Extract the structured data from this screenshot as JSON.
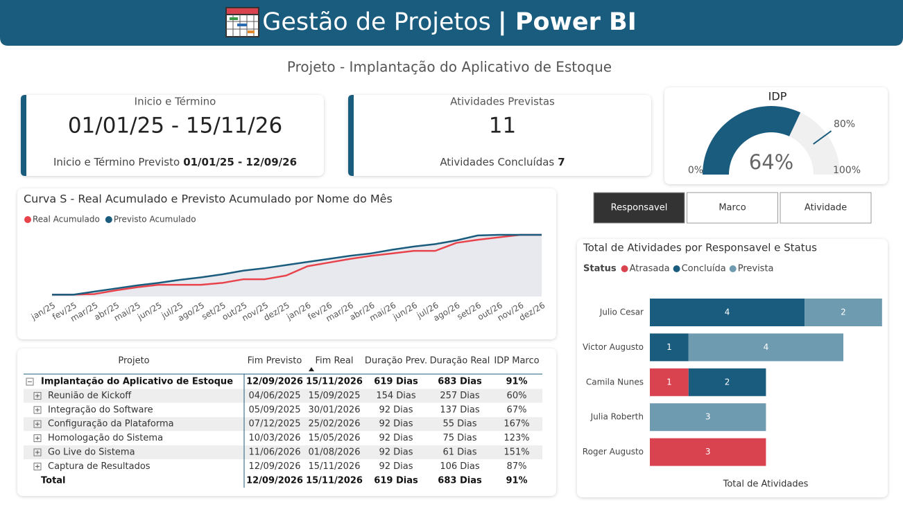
{
  "header": {
    "title": "Gestão de Projetos",
    "brand": "| Power BI"
  },
  "subtitle": "Projeto - Implantação do Aplicativo de Estoque",
  "cards": [
    {
      "label": "Inicio e Término",
      "value": "01/01/25 - 15/11/26",
      "footer_label": "Inicio e Término Previsto",
      "footer_value": "01/01/25 - 12/09/26"
    },
    {
      "label": "Atividades Previstas",
      "value": 11,
      "footer_label": "Atividades Concluídas",
      "footer_value": 7
    }
  ],
  "tabs": [
    "Responsavel",
    "Marco",
    "Atividade"
  ],
  "active_tab": 0,
  "table": {
    "columns": [
      "Projeto",
      "Fim Previsto",
      "Fim Real",
      "Duração Prev.",
      "Duração Real",
      "IDP Marco"
    ],
    "rows": [
      [
        "Implantação do Aplicativo de Estoque",
        "12/09/2026",
        "15/11/2026",
        "619 Dias",
        "683 Dias",
        "91%"
      ],
      [
        "Reunião de Kickoff",
        "04/06/2025",
        "15/09/2025",
        "154 Dias",
        "257 Dias",
        "60%"
      ],
      [
        "Integração do Software",
        "05/09/2025",
        "30/01/2026",
        "92 Dias",
        "137 Dias",
        "67%"
      ],
      [
        "Configuração da Plataforma",
        "07/12/2025",
        "25/02/2026",
        "92 Dias",
        "55 Dias",
        "167%"
      ],
      [
        "Homologação do Sistema",
        "10/03/2026",
        "15/05/2026",
        "92 Dias",
        "75 Dias",
        "123%"
      ],
      [
        "Go Live do Sistema",
        "11/06/2026",
        "01/08/2026",
        "92 Dias",
        "61 Dias",
        "151%"
      ],
      [
        "Captura de Resultados",
        "12/09/2026",
        "15/11/2026",
        "92 Dias",
        "106 Dias",
        "87%"
      ]
    ],
    "total": [
      "Total",
      "12/09/2026",
      "15/11/2026",
      "619 Dias",
      "683 Dias",
      "91%"
    ]
  },
  "chart_data": [
    {
      "type": "gauge",
      "title": "IDP",
      "value": 64,
      "value_label": "64%",
      "color": "#1a5c7e",
      "track_color": "#f0f0f0",
      "ylim": [
        0,
        100
      ],
      "yticks": [
        {
          "value": 0,
          "label": "0%"
        },
        {
          "value": 100,
          "label": "100%"
        }
      ],
      "target": {
        "value": 80,
        "label": "80%"
      }
    },
    {
      "type": "line",
      "title": "Curva S - Real Acumulado e Previsto Acumulado por Nome do Mês",
      "categories": [
        "jan/25",
        "fev/25",
        "mar/25",
        "abr/25",
        "mai/25",
        "jun/25",
        "jul/25",
        "ago/25",
        "set/25",
        "out/25",
        "nov/25",
        "dez/25",
        "jan/26",
        "fev/26",
        "mar/26",
        "abr/26",
        "mai/26",
        "jun/26",
        "jul/26",
        "ago/26",
        "set/26",
        "out/26",
        "nov/26",
        "dez/26"
      ],
      "ylim": [
        0,
        100
      ],
      "area_color": "#e8e8ef",
      "series": [
        {
          "name": "Real Acumulado",
          "color": "#e8434b",
          "values": [
            3,
            3,
            4,
            10,
            15,
            19,
            19,
            19,
            22,
            28,
            28,
            34,
            49,
            55,
            61,
            66,
            70,
            74,
            74,
            87,
            92,
            96,
            100,
            100
          ]
        },
        {
          "name": "Previsto Acumulado",
          "color": "#1a5c7e",
          "values": [
            3,
            3,
            8,
            13,
            18,
            22,
            27,
            31,
            36,
            42,
            46,
            51,
            56,
            61,
            66,
            70,
            76,
            81,
            85,
            91,
            99,
            100,
            100,
            100
          ]
        }
      ]
    },
    {
      "type": "bar",
      "orientation": "horizontal",
      "stacked": true,
      "title": "Total de Atividades por Responsavel e Status",
      "legend_title": "Status",
      "x_label": "Total de Atividades",
      "xlim": [
        0,
        6
      ],
      "categories": [
        "Julio Cesar",
        "Victor Augusto",
        "Camila Nunes",
        "Julia Roberth",
        "Roger Augusto"
      ],
      "series": [
        {
          "name": "Atrasada",
          "color": "#d9434f",
          "values": [
            null,
            null,
            1,
            null,
            3
          ]
        },
        {
          "name": "Concluída",
          "color": "#1a5c7e",
          "values": [
            4,
            1,
            2,
            null,
            null
          ]
        },
        {
          "name": "Prevista",
          "color": "#6e9bb0",
          "values": [
            2,
            4,
            null,
            3,
            null
          ]
        }
      ]
    }
  ]
}
